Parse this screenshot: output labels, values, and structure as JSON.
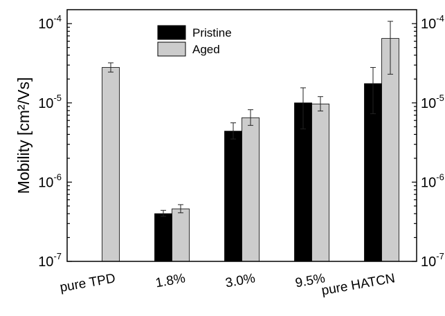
{
  "chart_data": {
    "type": "bar",
    "ylabel": "Mobility [cm²/Vs]",
    "yscale": "log",
    "ylim": [
      1e-07,
      0.00015
    ],
    "grid": false,
    "legend_position": "top-center",
    "categories": [
      "pure TPD",
      "1.8%",
      "3.0%",
      "9.5%",
      "pure HATCN"
    ],
    "y_ticks": [
      {
        "value": 1e-07,
        "base": "10",
        "exp": "-7"
      },
      {
        "value": 1e-06,
        "base": "10",
        "exp": "-6"
      },
      {
        "value": 1e-05,
        "base": "10",
        "exp": "-5"
      },
      {
        "value": 0.0001,
        "base": "10",
        "exp": "-4"
      }
    ],
    "series": [
      {
        "name": "Pristine",
        "color": "#000000",
        "values": [
          null,
          4e-07,
          4.4e-06,
          1e-05,
          1.75e-05
        ],
        "err_low": [
          null,
          3.7e-07,
          3.5e-06,
          4.7e-06,
          7.3e-06
        ],
        "err_high": [
          null,
          4.4e-07,
          5.6e-06,
          1.55e-05,
          2.8e-05
        ]
      },
      {
        "name": "Aged",
        "color": "#cccccc",
        "values": [
          2.8e-05,
          4.6e-07,
          6.5e-06,
          9.7e-06,
          6.5e-05
        ],
        "err_low": [
          2.45e-05,
          4.1e-07,
          5.2e-06,
          7.9e-06,
          2.3e-05
        ],
        "err_high": [
          3.2e-05,
          5.2e-07,
          8.2e-06,
          1.2e-05,
          0.000107
        ]
      }
    ]
  }
}
